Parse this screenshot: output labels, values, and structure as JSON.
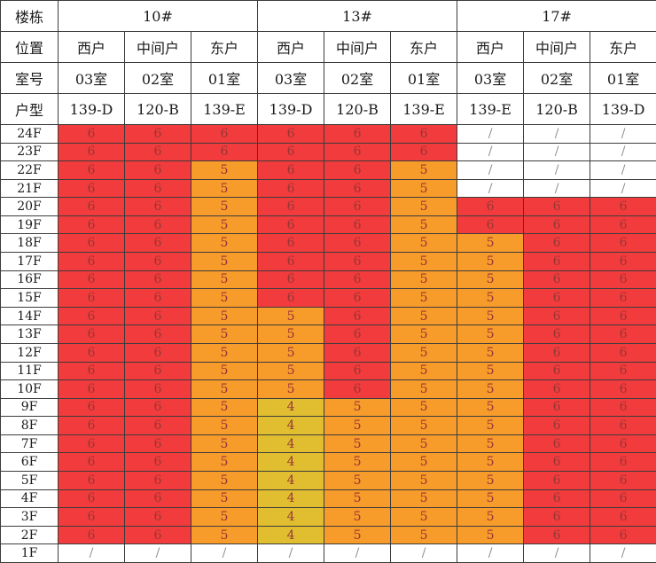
{
  "chart_data": {
    "type": "table",
    "corner_label_rows": [
      "楼栋",
      "位置",
      "室号",
      "户型"
    ],
    "buildings": [
      {
        "name": "10#",
        "units": [
          {
            "position": "西户",
            "room": "03室",
            "plan": "139-D"
          },
          {
            "position": "中间户",
            "room": "02室",
            "plan": "120-B"
          },
          {
            "position": "东户",
            "room": "01室",
            "plan": "139-E"
          }
        ]
      },
      {
        "name": "13#",
        "units": [
          {
            "position": "西户",
            "room": "03室",
            "plan": "139-D"
          },
          {
            "position": "中间户",
            "room": "02室",
            "plan": "120-B"
          },
          {
            "position": "东户",
            "room": "01室",
            "plan": "139-E"
          }
        ]
      },
      {
        "name": "17#",
        "units": [
          {
            "position": "西户",
            "room": "03室",
            "plan": "139-E"
          },
          {
            "position": "中间户",
            "room": "02室",
            "plan": "120-B"
          },
          {
            "position": "东户",
            "room": "01室",
            "plan": "139-D"
          }
        ]
      }
    ],
    "rows": [
      {
        "floor": "24F",
        "values": [
          "6",
          "6",
          "6",
          "6",
          "6",
          "6",
          "/",
          "/",
          "/"
        ]
      },
      {
        "floor": "23F",
        "values": [
          "6",
          "6",
          "6",
          "6",
          "6",
          "6",
          "/",
          "/",
          "/"
        ]
      },
      {
        "floor": "22F",
        "values": [
          "6",
          "6",
          "5",
          "6",
          "6",
          "5",
          "/",
          "/",
          "/"
        ]
      },
      {
        "floor": "21F",
        "values": [
          "6",
          "6",
          "5",
          "6",
          "6",
          "5",
          "/",
          "/",
          "/"
        ]
      },
      {
        "floor": "20F",
        "values": [
          "6",
          "6",
          "5",
          "6",
          "6",
          "5",
          "6",
          "6",
          "6"
        ]
      },
      {
        "floor": "19F",
        "values": [
          "6",
          "6",
          "5",
          "6",
          "6",
          "5",
          "6",
          "6",
          "6"
        ]
      },
      {
        "floor": "18F",
        "values": [
          "6",
          "6",
          "5",
          "6",
          "6",
          "5",
          "5",
          "6",
          "6"
        ]
      },
      {
        "floor": "17F",
        "values": [
          "6",
          "6",
          "5",
          "6",
          "6",
          "5",
          "5",
          "6",
          "6"
        ]
      },
      {
        "floor": "16F",
        "values": [
          "6",
          "6",
          "5",
          "6",
          "6",
          "5",
          "5",
          "6",
          "6"
        ]
      },
      {
        "floor": "15F",
        "values": [
          "6",
          "6",
          "5",
          "6",
          "6",
          "5",
          "5",
          "6",
          "6"
        ]
      },
      {
        "floor": "14F",
        "values": [
          "6",
          "6",
          "5",
          "5",
          "6",
          "5",
          "5",
          "6",
          "6"
        ]
      },
      {
        "floor": "13F",
        "values": [
          "6",
          "6",
          "5",
          "5",
          "6",
          "5",
          "5",
          "6",
          "6"
        ]
      },
      {
        "floor": "12F",
        "values": [
          "6",
          "6",
          "5",
          "5",
          "6",
          "5",
          "5",
          "6",
          "6"
        ]
      },
      {
        "floor": "11F",
        "values": [
          "6",
          "6",
          "5",
          "5",
          "6",
          "5",
          "5",
          "6",
          "6"
        ]
      },
      {
        "floor": "10F",
        "values": [
          "6",
          "6",
          "5",
          "5",
          "6",
          "5",
          "5",
          "6",
          "6"
        ]
      },
      {
        "floor": "9F",
        "values": [
          "6",
          "6",
          "5",
          "4",
          "5",
          "5",
          "5",
          "6",
          "6"
        ]
      },
      {
        "floor": "8F",
        "values": [
          "6",
          "6",
          "5",
          "4",
          "5",
          "5",
          "5",
          "6",
          "6"
        ]
      },
      {
        "floor": "7F",
        "values": [
          "6",
          "6",
          "5",
          "4",
          "5",
          "5",
          "5",
          "6",
          "6"
        ]
      },
      {
        "floor": "6F",
        "values": [
          "6",
          "6",
          "5",
          "4",
          "5",
          "5",
          "5",
          "6",
          "6"
        ]
      },
      {
        "floor": "5F",
        "values": [
          "6",
          "6",
          "5",
          "4",
          "5",
          "5",
          "5",
          "6",
          "6"
        ]
      },
      {
        "floor": "4F",
        "values": [
          "6",
          "6",
          "5",
          "4",
          "5",
          "5",
          "5",
          "6",
          "6"
        ]
      },
      {
        "floor": "3F",
        "values": [
          "6",
          "6",
          "5",
          "4",
          "5",
          "5",
          "5",
          "6",
          "6"
        ]
      },
      {
        "floor": "2F",
        "values": [
          "6",
          "6",
          "5",
          "4",
          "5",
          "5",
          "5",
          "6",
          "6"
        ]
      },
      {
        "floor": "1F",
        "values": [
          "/",
          "/",
          "/",
          "/",
          "/",
          "/",
          "/",
          "/",
          "/"
        ]
      }
    ],
    "value_colors": {
      "6": "#f23b3d",
      "5": "#f79b2b",
      "4": "#e1be30",
      "/": "#ffffff"
    },
    "digit_text_color": "#953735",
    "slash_text_color": "#8d929b"
  }
}
